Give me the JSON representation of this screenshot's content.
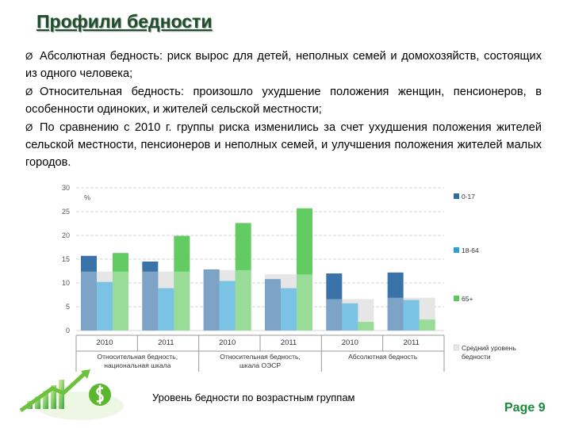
{
  "title": "Профили бедности",
  "bullet_marker": "Ø",
  "bullets": [
    "Абсолютная бедность: риск вырос для детей, неполных семей и домохозяйств, состоящих из одного человека;",
    "Относительная бедность: произошло ухудшение положения женщин, пенсионеров, в особенности одиноких, и жителей сельской местности;",
    "По сравнению с 2010 г. группы риска изменились за счет ухудшения положения жителей сельской местности, пенсионеров и неполных семей, и улучшения положения жителей малых городов."
  ],
  "caption": "Уровень бедности по возрастным группам",
  "page_label": "Page 9",
  "chart_data": {
    "type": "bar",
    "ylabel": "%",
    "ylim": [
      0,
      30
    ],
    "yticks": [
      "0",
      "5",
      "10",
      "15",
      "20",
      "25",
      "30"
    ],
    "categories": [
      "2010",
      "2011",
      "2010",
      "2011",
      "2010",
      "2011"
    ],
    "groups": [
      "Относительная бедность, национальная шкала",
      "Относительная бедность, шкала ОЭСР",
      "Абсолютная бедность"
    ],
    "series": [
      {
        "name": "0-17",
        "color": "#2e6ca4",
        "values": [
          15.7,
          14.5,
          12.8,
          10.8,
          12.0,
          12.2
        ]
      },
      {
        "name": "18-64",
        "color": "#2a9fd6",
        "values": [
          10.2,
          8.9,
          10.4,
          8.9,
          5.7,
          6.4
        ]
      },
      {
        "name": "65+",
        "color": "#5ac85a",
        "values": [
          16.3,
          19.9,
          22.6,
          25.7,
          1.8,
          2.3
        ]
      }
    ],
    "average": {
      "name": "Средний уровень бедности",
      "color": "#e6e6e6",
      "values": [
        12.4,
        12.4,
        12.7,
        11.8,
        6.6,
        6.9
      ]
    },
    "grid": true,
    "legend_position": "right"
  }
}
